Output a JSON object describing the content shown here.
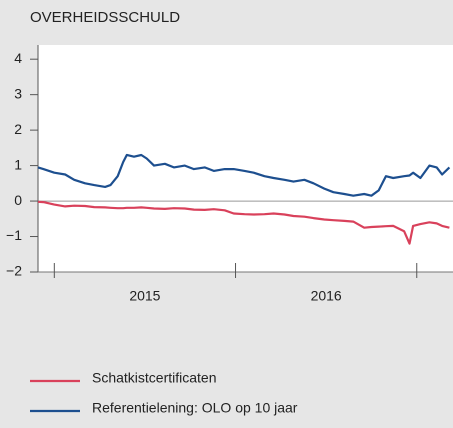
{
  "chart_data": {
    "type": "line",
    "title": "OVERHEIDSSCHULD",
    "x": [
      2014.91,
      2014.94,
      2015.0,
      2015.06,
      2015.11,
      2015.17,
      2015.22,
      2015.28,
      2015.31,
      2015.35,
      2015.38,
      2015.4,
      2015.44,
      2015.48,
      2015.51,
      2015.55,
      2015.61,
      2015.66,
      2015.72,
      2015.77,
      2015.83,
      2015.88,
      2015.94,
      2015.99,
      2016.05,
      2016.1,
      2016.16,
      2016.21,
      2016.27,
      2016.32,
      2016.38,
      2016.43,
      2016.49,
      2016.54,
      2016.6,
      2016.65,
      2016.71,
      2016.75,
      2016.79,
      2016.83,
      2016.87,
      2016.93,
      2016.96,
      2016.98,
      2017.02,
      2017.07,
      2017.11,
      2017.14,
      2017.18
    ],
    "series": [
      {
        "name": "Schatkistcertificaten",
        "color": "#d9415b",
        "values": [
          -0.02,
          -0.03,
          -0.1,
          -0.15,
          -0.13,
          -0.14,
          -0.17,
          -0.18,
          -0.19,
          -0.2,
          -0.2,
          -0.19,
          -0.19,
          -0.18,
          -0.19,
          -0.21,
          -0.22,
          -0.2,
          -0.21,
          -0.24,
          -0.25,
          -0.23,
          -0.26,
          -0.35,
          -0.37,
          -0.38,
          -0.37,
          -0.35,
          -0.38,
          -0.42,
          -0.44,
          -0.48,
          -0.52,
          -0.54,
          -0.56,
          -0.58,
          -0.75,
          -0.73,
          -0.72,
          -0.71,
          -0.7,
          -0.85,
          -1.2,
          -0.7,
          -0.65,
          -0.6,
          -0.63,
          -0.7,
          -0.75
        ]
      },
      {
        "name": "Referentielening: OLO op 10 jaar",
        "color": "#1d4f8f",
        "values": [
          0.95,
          0.9,
          0.8,
          0.75,
          0.6,
          0.5,
          0.45,
          0.4,
          0.45,
          0.7,
          1.1,
          1.3,
          1.25,
          1.3,
          1.2,
          1.0,
          1.05,
          0.95,
          1.0,
          0.9,
          0.95,
          0.85,
          0.9,
          0.9,
          0.85,
          0.8,
          0.7,
          0.65,
          0.6,
          0.55,
          0.6,
          0.5,
          0.35,
          0.25,
          0.2,
          0.15,
          0.2,
          0.15,
          0.3,
          0.7,
          0.65,
          0.7,
          0.72,
          0.8,
          0.65,
          1.0,
          0.95,
          0.75,
          0.95
        ]
      }
    ],
    "xlim": [
      2014.91,
      2017.2
    ],
    "xticks": [
      2015,
      2016,
      2017
    ],
    "year_labels": [
      {
        "value": 2015.5,
        "label": "2015"
      },
      {
        "value": 2016.5,
        "label": "2016"
      }
    ],
    "ylim": [
      -2,
      4.4
    ],
    "yticks": [
      4,
      3,
      2,
      1,
      0,
      {
        "value": -1,
        "label": "−1"
      },
      {
        "value": -2,
        "label": "−2"
      }
    ]
  }
}
